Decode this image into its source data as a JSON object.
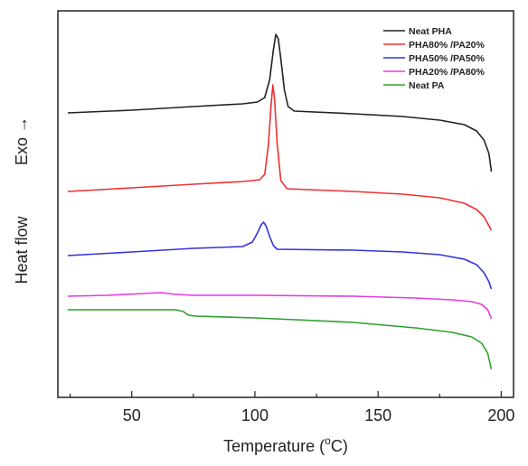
{
  "chart_data": {
    "type": "line",
    "title": "",
    "xlabel": "Temperature (°C)",
    "xlabel_parts": {
      "before": "Temperature (",
      "sup": "o",
      "after": "C)"
    },
    "ylabel": "Heat flow",
    "ylabel_annotation": "Exo →",
    "xlim": [
      20,
      205
    ],
    "xticks": [
      50,
      100,
      150,
      200
    ],
    "y_ticks_shown": false,
    "grid": false,
    "legend_position": "top-right",
    "series": [
      {
        "name": "Neat PHA",
        "color": "#222222",
        "points": [
          [
            24,
            125
          ],
          [
            50,
            122
          ],
          [
            75,
            118
          ],
          [
            95,
            115
          ],
          [
            101,
            113
          ],
          [
            104,
            108
          ],
          [
            106,
            88
          ],
          [
            107.5,
            55
          ],
          [
            108.5,
            38
          ],
          [
            109.5,
            43
          ],
          [
            110.5,
            65
          ],
          [
            112,
            100
          ],
          [
            113.5,
            118
          ],
          [
            116,
            123
          ],
          [
            140,
            126
          ],
          [
            160,
            129
          ],
          [
            175,
            133
          ],
          [
            185,
            138
          ],
          [
            190,
            145
          ],
          [
            193,
            155
          ],
          [
            195,
            170
          ],
          [
            196,
            190
          ]
        ]
      },
      {
        "name": "PHA80% /PA20%",
        "color": "#ef3030",
        "points": [
          [
            24,
            212
          ],
          [
            50,
            208
          ],
          [
            75,
            204
          ],
          [
            95,
            201
          ],
          [
            102,
            199
          ],
          [
            104,
            193
          ],
          [
            105.5,
            160
          ],
          [
            106.5,
            118
          ],
          [
            107.3,
            94
          ],
          [
            108,
            110
          ],
          [
            109,
            158
          ],
          [
            110.5,
            200
          ],
          [
            113,
            209
          ],
          [
            140,
            212
          ],
          [
            160,
            215
          ],
          [
            175,
            219
          ],
          [
            185,
            225
          ],
          [
            190,
            232
          ],
          [
            193,
            240
          ],
          [
            195,
            250
          ],
          [
            196,
            255
          ]
        ]
      },
      {
        "name": "PHA50% /PA50%",
        "color": "#3333dd",
        "points": [
          [
            24,
            283
          ],
          [
            50,
            279
          ],
          [
            75,
            275
          ],
          [
            95,
            273
          ],
          [
            99,
            268
          ],
          [
            101,
            258
          ],
          [
            102.5,
            249
          ],
          [
            103.5,
            246
          ],
          [
            104.5,
            250
          ],
          [
            106,
            262
          ],
          [
            107.5,
            272
          ],
          [
            109,
            276
          ],
          [
            140,
            277
          ],
          [
            160,
            279
          ],
          [
            175,
            282
          ],
          [
            185,
            287
          ],
          [
            190,
            293
          ],
          [
            193,
            302
          ],
          [
            195,
            312
          ],
          [
            196,
            320
          ]
        ]
      },
      {
        "name": "PHA20% /PA80%",
        "color": "#e33be3",
        "points": [
          [
            24,
            328
          ],
          [
            40,
            327
          ],
          [
            55,
            325
          ],
          [
            62,
            324
          ],
          [
            68,
            326
          ],
          [
            75,
            327
          ],
          [
            100,
            327
          ],
          [
            140,
            328
          ],
          [
            165,
            330
          ],
          [
            180,
            332
          ],
          [
            188,
            334
          ],
          [
            192,
            337
          ],
          [
            194.5,
            343
          ],
          [
            196,
            353
          ]
        ]
      },
      {
        "name": "Neat PA",
        "color": "#2ca02c",
        "points": [
          [
            24,
            343
          ],
          [
            50,
            343
          ],
          [
            68,
            343
          ],
          [
            71,
            345
          ],
          [
            73,
            349
          ],
          [
            76,
            350
          ],
          [
            100,
            352
          ],
          [
            140,
            357
          ],
          [
            165,
            363
          ],
          [
            180,
            368
          ],
          [
            188,
            373
          ],
          [
            192,
            380
          ],
          [
            194.5,
            391
          ],
          [
            196,
            409
          ]
        ]
      }
    ]
  }
}
